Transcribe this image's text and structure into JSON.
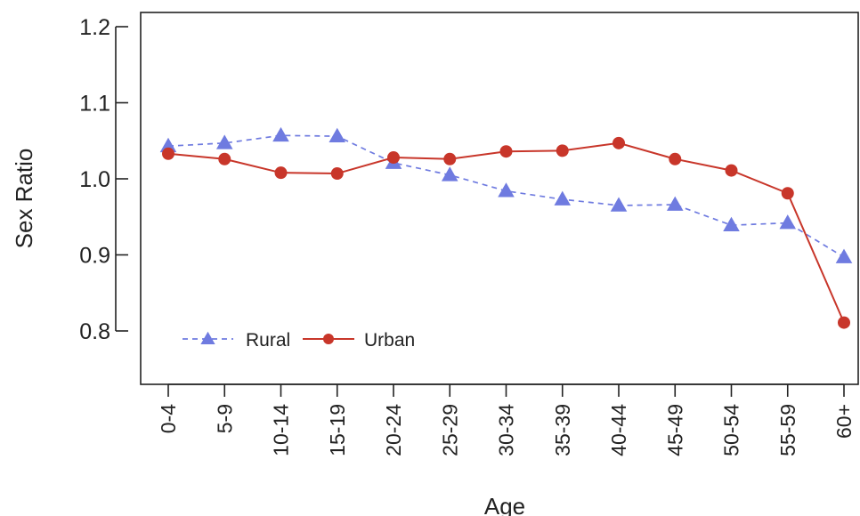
{
  "chart_data": {
    "type": "line",
    "xlabel": "Age",
    "ylabel": "Sex Ratio",
    "categories": [
      "0-4",
      "5-9",
      "10-14",
      "15-19",
      "20-24",
      "25-29",
      "30-34",
      "35-39",
      "40-44",
      "45-49",
      "50-54",
      "55-59",
      "60+"
    ],
    "ylim": [
      0.75,
      1.22
    ],
    "yticks": [
      "0.8",
      "0.9",
      "1.0",
      "1.1",
      "1.2"
    ],
    "grid": false,
    "legend_position": "bottom-left",
    "series": [
      {
        "name": "Rural",
        "marker": "triangle",
        "line_style": "dashed",
        "color": "#6f7be0",
        "values": [
          1.043,
          1.047,
          1.057,
          1.056,
          1.021,
          1.005,
          0.984,
          0.973,
          0.965,
          0.966,
          0.939,
          0.942,
          0.897
        ]
      },
      {
        "name": "Urban",
        "marker": "circle",
        "line_style": "solid",
        "color": "#c8362a",
        "values": [
          1.033,
          1.026,
          1.008,
          1.007,
          1.028,
          1.026,
          1.036,
          1.037,
          1.047,
          1.026,
          1.011,
          0.981,
          0.811
        ]
      }
    ]
  }
}
